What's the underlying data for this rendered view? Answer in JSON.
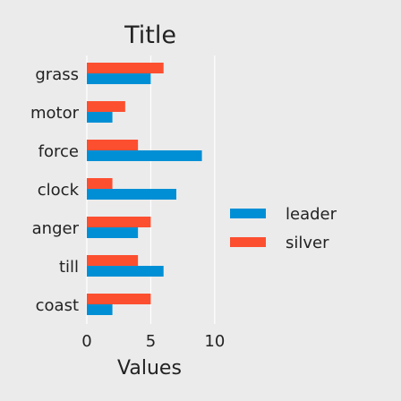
{
  "chart_data": {
    "type": "bar",
    "orientation": "horizontal",
    "title": "Title",
    "xlabel": "Values",
    "ylabel": "",
    "categories": [
      "coast",
      "till",
      "anger",
      "clock",
      "force",
      "motor",
      "grass"
    ],
    "series": [
      {
        "name": "leader",
        "color": "#008fd5",
        "values": [
          2,
          6,
          4,
          7,
          9,
          2,
          5
        ]
      },
      {
        "name": "silver",
        "color": "#fc4f30",
        "values": [
          5,
          4,
          5,
          2,
          4,
          3,
          6
        ]
      }
    ],
    "xlim": [
      0,
      10.5
    ],
    "xticks": [
      0,
      5,
      10
    ],
    "grid": true,
    "legend_position": "right"
  }
}
